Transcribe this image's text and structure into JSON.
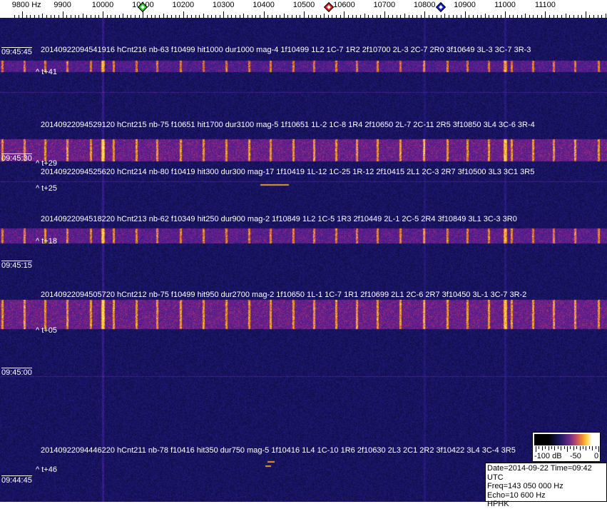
{
  "chart_data": {
    "type": "heatmap",
    "title": "",
    "x_axis": {
      "unit": "Hz",
      "ticks": [
        9800,
        9900,
        10000,
        10100,
        10200,
        10300,
        10400,
        10500,
        10600,
        10700,
        10800,
        10900,
        11000,
        11100
      ],
      "tick_labels": [
        "9800 Hz",
        "9900",
        "10000",
        "10100",
        "10200",
        "10300",
        "10400",
        "10500",
        "10600",
        "10700",
        "10800",
        "10900",
        "11000",
        "11100"
      ],
      "range": [
        9770,
        11280
      ]
    },
    "y_axis": {
      "ticks": [
        "09:45:45",
        "09:45:30",
        "09:45:15",
        "09:45:00",
        "09:44:45"
      ],
      "direction": "time increases upward"
    },
    "markers": [
      {
        "name": "green",
        "freq": 10100,
        "color": "#22cc22"
      },
      {
        "name": "red",
        "freq": 10562,
        "color": "#dd2222"
      },
      {
        "name": "blue",
        "freq": 10840,
        "color": "#1a22cc"
      }
    ],
    "detections": [
      {
        "text": "20140922094541916 hCnt216 nb-63 f10499 hit1000 dur1000 mag-4 1f10499 1L2 1C-7 1R2 2f10700 2L-3 2C-7 2R0 3f10649 3L-3 3C-7 3R-3",
        "offset": "^ t+41"
      },
      {
        "text": "20140922094529120 hCnt215 nb-75 f10651 hit1700 dur3100 mag-5 1f10651 1L-2 1C-8 1R4 2f10650 2L-7 2C-11 2R5 3f10850 3L4 3C-6 3R-4",
        "offset": "^ t+29"
      },
      {
        "text": "20140922094525620 hCnt214 nb-80 f10419 hit300 dur300 mag-17 1f10419 1L-12 1C-25 1R-12 2f10415 2L1 2C-3 2R7 3f10500 3L3 3C1 3R5",
        "offset": "^ t+25"
      },
      {
        "text": "20140922094518220 hCnt213 nb-62 f10349 hit250 dur900 mag-2 1f10849 1L2 1C-5 1R3 2f10449 2L-1 2C-5 2R4 3f10849 3L1 3C-3 3R0",
        "offset": "^ t+18"
      },
      {
        "text": "20140922094505720 hCnt212 nb-75 f10499 hit950 dur2700 mag-2 1f10650 1L-1 1C-7 1R1 2f10699 2L1 2C-6 2R7 3f10450 3L-1 3C-7 3R-2",
        "offset": "^ t+05"
      },
      {
        "text": "20140922094446220 hCnt211 nb-78 f10416 hit350 dur750 mag-5 1f10416 1L4 1C-10 1R6 2f10630 2L3 2C1 2R2 3f10422 3L4 3C-4 3R5",
        "offset": "^ t+46"
      }
    ],
    "colorbar": {
      "labels": [
        "-100 dB",
        "-50",
        "0"
      ],
      "range": [
        -100,
        0
      ],
      "colors": [
        "#000000",
        "#1d1660",
        "#6a2a8a",
        "#f09030",
        "#ffd040",
        "#ffffff"
      ]
    },
    "info": {
      "date_time": "Date=2014-09-22 Time=09:42 UTC",
      "freq": "Freq=143 050 000 Hz",
      "echo": "Echo=10 600 Hz",
      "station": "HPHK"
    }
  }
}
